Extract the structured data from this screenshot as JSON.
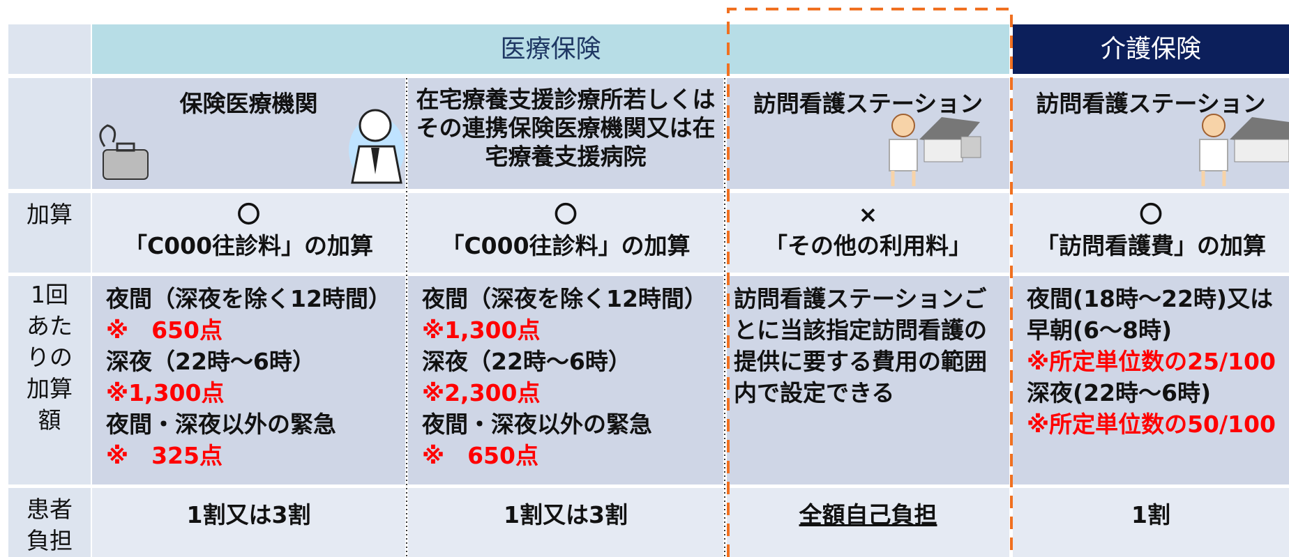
{
  "header": {
    "medical_insurance": "医療保険",
    "care_insurance": "介護保険"
  },
  "columns": [
    "保険医療機関",
    "在宅療養支援診療所若しくはその連携保険医療機関又は在宅療養支援病院",
    "訪問看護ステーション",
    "訪問看護ステーション"
  ],
  "rows": [
    {
      "label": "加算",
      "cells": [
        [
          {
            "text": "〇"
          },
          {
            "text": "「C000往診料」の加算"
          }
        ],
        [
          {
            "text": "〇"
          },
          {
            "text": "「C000往診料」の加算"
          }
        ],
        [
          {
            "text": "×"
          },
          {
            "text": "「その他の利用料」"
          }
        ],
        [
          {
            "text": "〇"
          },
          {
            "text": "「訪問看護費」の加算"
          }
        ]
      ]
    },
    {
      "label": "1回あたりの加算額",
      "cells": [
        [
          {
            "text": "夜間（深夜を除く12時間）"
          },
          {
            "text": "※　650点",
            "color": "#ff0000"
          },
          {
            "text": "深夜（22時～6時）"
          },
          {
            "text": "※1,300点",
            "color": "#ff0000"
          },
          {
            "text": "夜間・深夜以外の緊急"
          },
          {
            "text": "※　325点",
            "color": "#ff0000"
          }
        ],
        [
          {
            "text": "夜間（深夜を除く12時間）"
          },
          {
            "text": "※1,300点",
            "color": "#ff0000"
          },
          {
            "text": "深夜（22時～6時）"
          },
          {
            "text": "※2,300点",
            "color": "#ff0000"
          },
          {
            "text": "夜間・深夜以外の緊急"
          },
          {
            "text": "※　650点",
            "color": "#ff0000"
          }
        ],
        [
          {
            "text": "訪問看護ステーションごとに当該指定訪問看護の提供に要する費用の範囲内で設定できる"
          }
        ],
        [
          {
            "text": "夜間(18時～22時)又は"
          },
          {
            "text": "早朝(6～8時)"
          },
          {
            "text": "※所定単位数の25/100",
            "color": "#ff0000"
          },
          {
            "text": "深夜(22時～6時)"
          },
          {
            "text": "※所定単位数の50/100",
            "color": "#ff0000"
          }
        ]
      ]
    },
    {
      "label": "患者負担",
      "cells": [
        [
          {
            "text": "1割又は3割"
          }
        ],
        [
          {
            "text": "1割又は3割"
          }
        ],
        [
          {
            "text": "全額自己負担"
          }
        ],
        [
          {
            "text": "1割"
          }
        ]
      ]
    }
  ]
}
